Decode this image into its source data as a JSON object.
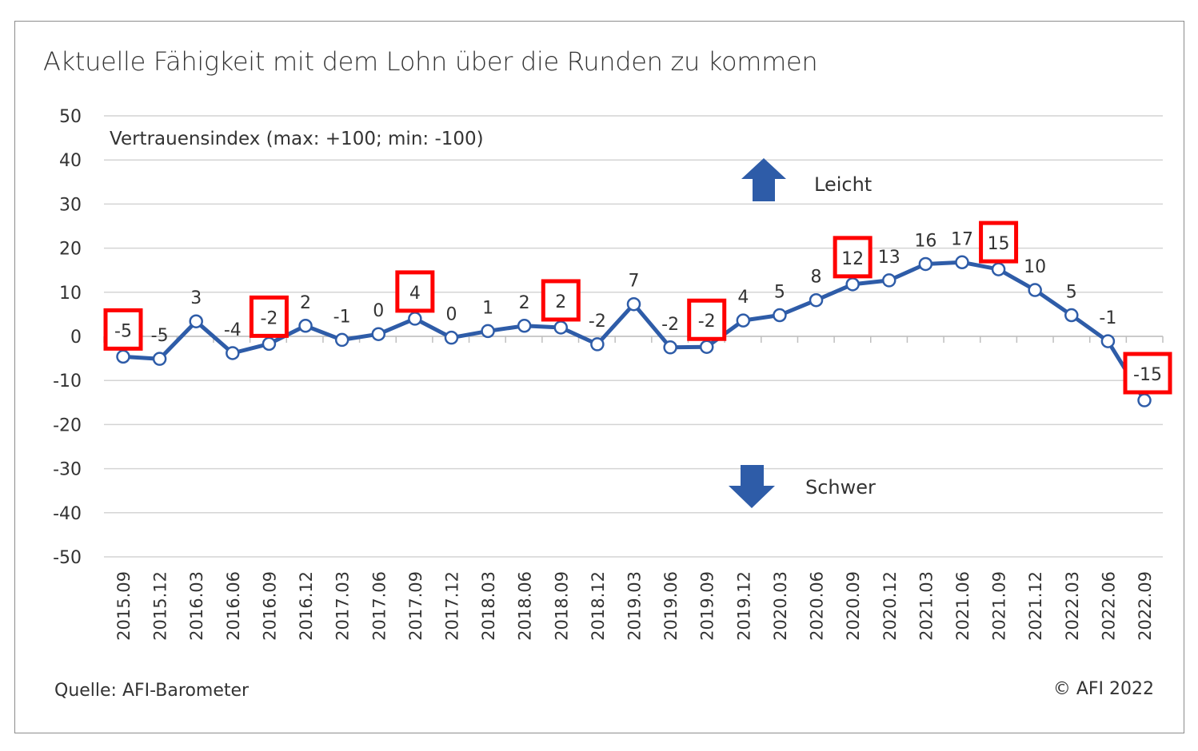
{
  "title": "Aktuelle Fähigkeit mit dem Lohn über die Runden zu kommen",
  "source": "Quelle: AFI-Barometer",
  "copyright": "© AFI 2022",
  "chart_data": {
    "type": "line",
    "index_label": "Vertrauensindex (max: +100; min: -100)",
    "up_label": "Leicht",
    "down_label": "Schwer",
    "ylim": [
      -50,
      50
    ],
    "yticks": [
      50,
      40,
      30,
      20,
      10,
      0,
      -10,
      -20,
      -30,
      -40,
      -50
    ],
    "grid": true,
    "line_color": "#2e5ca8",
    "arrow_color": "#2e5ca8",
    "highlight_color": "#ff0000",
    "categories": [
      "2015.09",
      "2015.12",
      "2016.03",
      "2016.06",
      "2016.09",
      "2016.12",
      "2017.03",
      "2017.06",
      "2017.09",
      "2017.12",
      "2018.03",
      "2018.06",
      "2018.09",
      "2018.12",
      "2019.03",
      "2019.06",
      "2019.09",
      "2019.12",
      "2020.03",
      "2020.06",
      "2020.09",
      "2020.12",
      "2021.03",
      "2021.06",
      "2021.09",
      "2021.12",
      "2022.03",
      "2022.06",
      "2022.09"
    ],
    "values": [
      -4.6,
      -5.1,
      3.4,
      -3.8,
      -1.7,
      2.4,
      -0.8,
      0.5,
      4.0,
      -0.3,
      1.2,
      2.4,
      2.0,
      -1.8,
      7.3,
      -2.5,
      -2.4,
      3.6,
      4.8,
      8.2,
      11.8,
      12.7,
      16.4,
      16.8,
      15.2,
      10.5,
      4.8,
      -1.1,
      -14.5
    ],
    "labels": [
      "-5",
      "-5",
      "3",
      "-4",
      "-2",
      "2",
      "-1",
      "0",
      "4",
      "0",
      "1",
      "2",
      "2",
      "-2",
      "7",
      "-2",
      "-2",
      "4",
      "5",
      "8",
      "12",
      "13",
      "16",
      "17",
      "15",
      "10",
      "5",
      "-1",
      "-15"
    ],
    "highlighted": [
      0,
      4,
      8,
      12,
      16,
      20,
      24,
      28
    ]
  }
}
